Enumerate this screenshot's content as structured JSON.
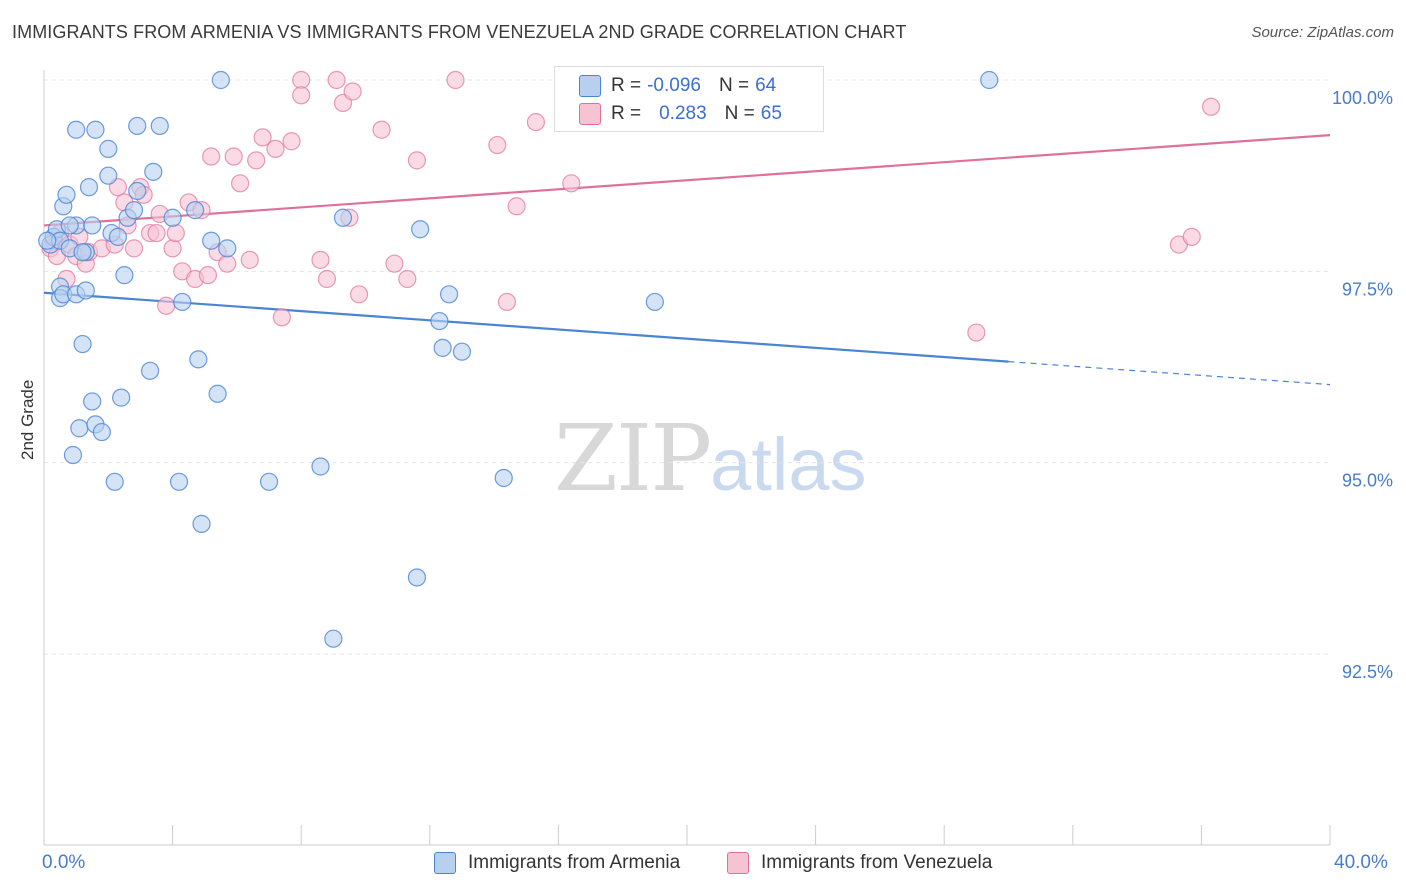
{
  "title": "IMMIGRANTS FROM ARMENIA VS IMMIGRANTS FROM VENEZUELA 2ND GRADE CORRELATION CHART",
  "source": "Source: ZipAtlas.com",
  "watermark": {
    "zip": "ZIP",
    "atlas": "atlas"
  },
  "legend": {
    "r_label": "R =",
    "n_label": "N =",
    "armenia": {
      "r": "-0.096",
      "n": "64"
    },
    "venezuela": {
      "r": "0.283",
      "n": "65"
    }
  },
  "colors": {
    "armenia": "#4a84d4",
    "armenia_fill": "#b8d0f0",
    "venezuela": "#e0709a",
    "venezuela_fill": "#f6c3d3"
  },
  "chart_data": {
    "type": "scatter",
    "title": "IMMIGRANTS FROM ARMENIA VS IMMIGRANTS FROM VENEZUELA 2ND GRADE CORRELATION CHART",
    "xlabel": "",
    "ylabel": "2nd Grade",
    "x_tick_labels": [
      "0.0%",
      "40.0%"
    ],
    "y_ticks": [
      92.5,
      95.0,
      97.5,
      100.0
    ],
    "y_tick_labels": [
      "92.5%",
      "95.0%",
      "97.5%",
      "100.0%"
    ],
    "xlim": [
      0,
      40
    ],
    "ylim": [
      90.0,
      100.2
    ],
    "grid": true,
    "legend_position": "bottom",
    "series": [
      {
        "name": "Immigrants from Armenia",
        "trend": {
          "x": [
            0,
            30,
            40
          ],
          "y": [
            97.22,
            96.32,
            96.02
          ]
        },
        "points": [
          [
            0.2,
            97.85
          ],
          [
            0.3,
            97.95
          ],
          [
            0.4,
            98.05
          ],
          [
            0.5,
            97.9
          ],
          [
            0.5,
            97.3
          ],
          [
            0.5,
            97.15
          ],
          [
            0.6,
            98.35
          ],
          [
            0.6,
            97.2
          ],
          [
            0.7,
            98.5
          ],
          [
            0.8,
            97.8
          ],
          [
            0.9,
            95.1
          ],
          [
            1.0,
            97.2
          ],
          [
            1.0,
            98.1
          ],
          [
            1.0,
            99.35
          ],
          [
            1.1,
            95.45
          ],
          [
            1.2,
            96.55
          ],
          [
            1.3,
            97.25
          ],
          [
            1.3,
            97.75
          ],
          [
            1.4,
            98.6
          ],
          [
            1.5,
            98.1
          ],
          [
            1.5,
            95.8
          ],
          [
            1.6,
            95.5
          ],
          [
            1.6,
            99.35
          ],
          [
            1.8,
            95.4
          ],
          [
            2.0,
            98.75
          ],
          [
            2.0,
            99.1
          ],
          [
            2.1,
            98.0
          ],
          [
            2.2,
            94.75
          ],
          [
            2.3,
            97.95
          ],
          [
            2.4,
            95.85
          ],
          [
            2.5,
            97.45
          ],
          [
            2.6,
            98.2
          ],
          [
            2.8,
            98.3
          ],
          [
            2.9,
            98.55
          ],
          [
            2.9,
            99.4
          ],
          [
            3.3,
            96.2
          ],
          [
            3.4,
            98.8
          ],
          [
            3.6,
            99.4
          ],
          [
            4.0,
            98.2
          ],
          [
            4.2,
            94.75
          ],
          [
            4.3,
            97.1
          ],
          [
            4.7,
            98.3
          ],
          [
            4.8,
            96.35
          ],
          [
            4.9,
            94.2
          ],
          [
            5.2,
            97.9
          ],
          [
            5.4,
            95.9
          ],
          [
            5.5,
            100.0
          ],
          [
            5.7,
            97.8
          ],
          [
            7.0,
            94.75
          ],
          [
            8.6,
            94.95
          ],
          [
            9.0,
            92.7
          ],
          [
            9.3,
            98.2
          ],
          [
            11.6,
            93.5
          ],
          [
            11.7,
            98.05
          ],
          [
            12.3,
            96.85
          ],
          [
            12.4,
            96.5
          ],
          [
            12.6,
            97.2
          ],
          [
            13.0,
            96.45
          ],
          [
            14.3,
            94.8
          ],
          [
            19.0,
            97.1
          ],
          [
            29.4,
            100.0
          ],
          [
            0.1,
            97.9
          ],
          [
            0.8,
            98.1
          ],
          [
            1.2,
            97.75
          ]
        ]
      },
      {
        "name": "Immigrants from Venezuela",
        "trend": {
          "x": [
            0,
            40
          ],
          "y": [
            98.1,
            99.28
          ]
        },
        "points": [
          [
            0.2,
            97.8
          ],
          [
            0.3,
            97.9
          ],
          [
            0.4,
            97.7
          ],
          [
            0.5,
            98.0
          ],
          [
            0.7,
            97.4
          ],
          [
            0.8,
            97.85
          ],
          [
            1.0,
            97.7
          ],
          [
            1.1,
            97.95
          ],
          [
            1.3,
            97.6
          ],
          [
            1.4,
            97.75
          ],
          [
            1.8,
            97.8
          ],
          [
            2.2,
            97.85
          ],
          [
            2.3,
            98.6
          ],
          [
            2.5,
            98.4
          ],
          [
            2.6,
            98.1
          ],
          [
            2.8,
            97.8
          ],
          [
            3.0,
            98.6
          ],
          [
            3.3,
            98.0
          ],
          [
            3.5,
            98.0
          ],
          [
            3.6,
            98.25
          ],
          [
            3.8,
            97.05
          ],
          [
            4.0,
            97.8
          ],
          [
            4.1,
            98.0
          ],
          [
            4.3,
            97.5
          ],
          [
            4.5,
            98.4
          ],
          [
            4.7,
            97.4
          ],
          [
            4.9,
            98.3
          ],
          [
            5.1,
            97.45
          ],
          [
            5.2,
            99.0
          ],
          [
            5.4,
            97.75
          ],
          [
            5.7,
            97.6
          ],
          [
            5.9,
            99.0
          ],
          [
            6.1,
            98.65
          ],
          [
            6.4,
            97.65
          ],
          [
            6.6,
            98.95
          ],
          [
            6.8,
            99.25
          ],
          [
            7.2,
            99.1
          ],
          [
            7.4,
            96.9
          ],
          [
            7.7,
            99.2
          ],
          [
            8.0,
            100.0
          ],
          [
            8.0,
            99.8
          ],
          [
            8.6,
            97.65
          ],
          [
            8.8,
            97.4
          ],
          [
            9.1,
            100.0
          ],
          [
            9.3,
            99.7
          ],
          [
            9.5,
            98.2
          ],
          [
            9.6,
            99.85
          ],
          [
            9.8,
            97.2
          ],
          [
            10.5,
            99.35
          ],
          [
            10.9,
            97.6
          ],
          [
            11.3,
            97.4
          ],
          [
            11.6,
            98.95
          ],
          [
            12.8,
            100.0
          ],
          [
            14.1,
            99.15
          ],
          [
            14.4,
            97.1
          ],
          [
            14.7,
            98.35
          ],
          [
            15.3,
            99.45
          ],
          [
            16.4,
            98.65
          ],
          [
            22.0,
            100.0
          ],
          [
            22.5,
            100.0
          ],
          [
            29.0,
            96.7
          ],
          [
            35.3,
            97.85
          ],
          [
            35.7,
            97.95
          ],
          [
            36.3,
            99.65
          ],
          [
            3.1,
            98.5
          ]
        ]
      }
    ]
  },
  "bottom_legend": {
    "armenia": "Immigrants from Armenia",
    "venezuela": "Immigrants from Venezuela"
  }
}
